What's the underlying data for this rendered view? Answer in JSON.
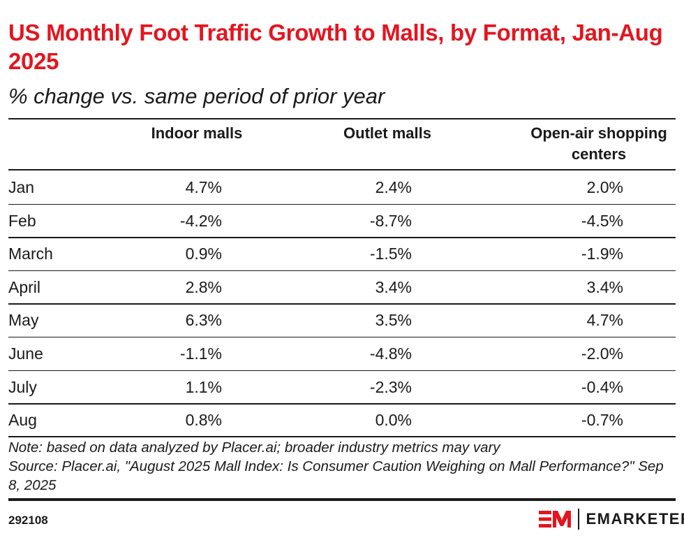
{
  "chart_data": {
    "type": "table",
    "title": "US Monthly Foot Traffic Growth to Malls, by Format, Jan-Aug 2025",
    "subtitle": "% change vs. same period of prior year",
    "columns": [
      "Indoor malls",
      "Outlet malls",
      "Open-air shopping centers"
    ],
    "rows": [
      {
        "label": "Jan",
        "values": [
          "4.7%",
          "2.4%",
          "2.0%"
        ]
      },
      {
        "label": "Feb",
        "values": [
          "-4.2%",
          "-8.7%",
          "-4.5%"
        ]
      },
      {
        "label": "March",
        "values": [
          "0.9%",
          "-1.5%",
          "-1.9%"
        ]
      },
      {
        "label": "April",
        "values": [
          "2.8%",
          "3.4%",
          "3.4%"
        ]
      },
      {
        "label": "May",
        "values": [
          "6.3%",
          "3.5%",
          "4.7%"
        ]
      },
      {
        "label": "June",
        "values": [
          "-1.1%",
          "-4.8%",
          "-2.0%"
        ]
      },
      {
        "label": "July",
        "values": [
          "1.1%",
          "-2.3%",
          "-0.4%"
        ]
      },
      {
        "label": "Aug",
        "values": [
          "0.8%",
          "0.0%",
          "-0.7%"
        ]
      }
    ],
    "note": "Note: based on data analyzed by Placer.ai; broader industry metrics may vary",
    "source": "Source: Placer.ai, \"August 2025 Mall Index: Is Consumer Caution Weighing on Mall Performance?\" Sep 8, 2025"
  },
  "footer": {
    "chart_id": "292108",
    "brand": "EMARKETER",
    "brand_color": "#e4151f"
  }
}
